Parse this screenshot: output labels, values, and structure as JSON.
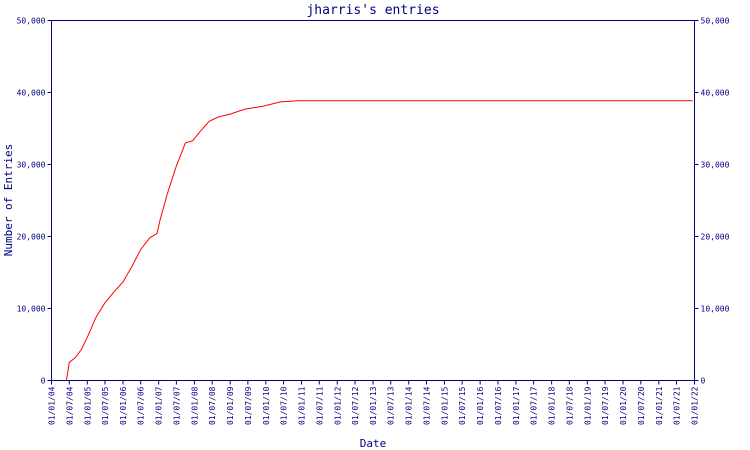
{
  "chart_data": {
    "type": "line",
    "title": "jharris's entries",
    "xlabel": "Date",
    "ylabel": "Number of Entries",
    "y_ticks": [
      0,
      10000,
      20000,
      30000,
      40000,
      50000
    ],
    "y_tick_labels": [
      "0",
      "10,000",
      "20,000",
      "30,000",
      "40,000",
      "50,000"
    ],
    "ylim": [
      0,
      50000
    ],
    "xlim": [
      "2004-01-01",
      "2022-01-01"
    ],
    "x_tick_labels": [
      "01/01/04",
      "01/07/04",
      "01/01/05",
      "01/07/05",
      "01/01/06",
      "01/07/06",
      "01/01/07",
      "01/07/07",
      "01/01/08",
      "01/07/08",
      "01/01/09",
      "01/07/09",
      "01/01/10",
      "01/07/10",
      "01/01/11",
      "01/07/11",
      "01/01/12",
      "01/07/12",
      "01/01/13",
      "01/07/13",
      "01/01/14",
      "01/07/14",
      "01/01/15",
      "01/07/15",
      "01/01/16",
      "01/07/16",
      "01/01/17",
      "01/07/17",
      "01/01/18",
      "01/07/18",
      "01/01/19",
      "01/07/19",
      "01/01/20",
      "01/07/20",
      "01/01/21",
      "01/07/21",
      "01/01/22"
    ],
    "x_tick_dates": [
      "2004-01-01",
      "2004-07-01",
      "2005-01-01",
      "2005-07-01",
      "2006-01-01",
      "2006-07-01",
      "2007-01-01",
      "2007-07-01",
      "2008-01-01",
      "2008-07-01",
      "2009-01-01",
      "2009-07-01",
      "2010-01-01",
      "2010-07-01",
      "2011-01-01",
      "2011-07-01",
      "2012-01-01",
      "2012-07-01",
      "2013-01-01",
      "2013-07-01",
      "2014-01-01",
      "2014-07-01",
      "2015-01-01",
      "2015-07-01",
      "2016-01-01",
      "2016-07-01",
      "2017-01-01",
      "2017-07-01",
      "2018-01-01",
      "2018-07-01",
      "2019-01-01",
      "2019-07-01",
      "2020-01-01",
      "2020-07-01",
      "2021-01-01",
      "2021-07-01",
      "2022-01-01"
    ],
    "right_axis": true,
    "grid": false,
    "colors": {
      "series": "#ff0000",
      "axis": "#000080",
      "text": "#000080"
    },
    "series": [
      {
        "x": [
          "2004-06-01",
          "2004-07-01",
          "2004-09-01",
          "2004-11-01",
          "2005-01-01",
          "2005-04-01",
          "2005-07-01",
          "2005-10-01",
          "2006-01-01",
          "2006-04-01",
          "2006-07-01",
          "2006-10-01",
          "2006-12-15",
          "2007-01-15",
          "2007-04-01",
          "2007-07-01",
          "2007-10-01",
          "2007-12-15",
          "2008-03-01",
          "2008-06-01",
          "2008-09-01",
          "2009-01-01",
          "2009-06-01",
          "2009-12-01",
          "2010-06-01",
          "2010-12-01",
          "2011-06-01",
          "2012-01-01",
          "2014-01-01",
          "2016-01-01",
          "2018-01-01",
          "2020-01-01",
          "2021-12-15"
        ],
        "y": [
          0,
          2500,
          3200,
          4300,
          6000,
          8800,
          10800,
          12300,
          13700,
          15800,
          18200,
          19800,
          20400,
          22300,
          26000,
          29800,
          33000,
          33300,
          34600,
          36000,
          36600,
          37000,
          37700,
          38100,
          38700,
          38850,
          38850,
          38850,
          38850,
          38850,
          38850,
          38850,
          38850
        ]
      }
    ]
  }
}
